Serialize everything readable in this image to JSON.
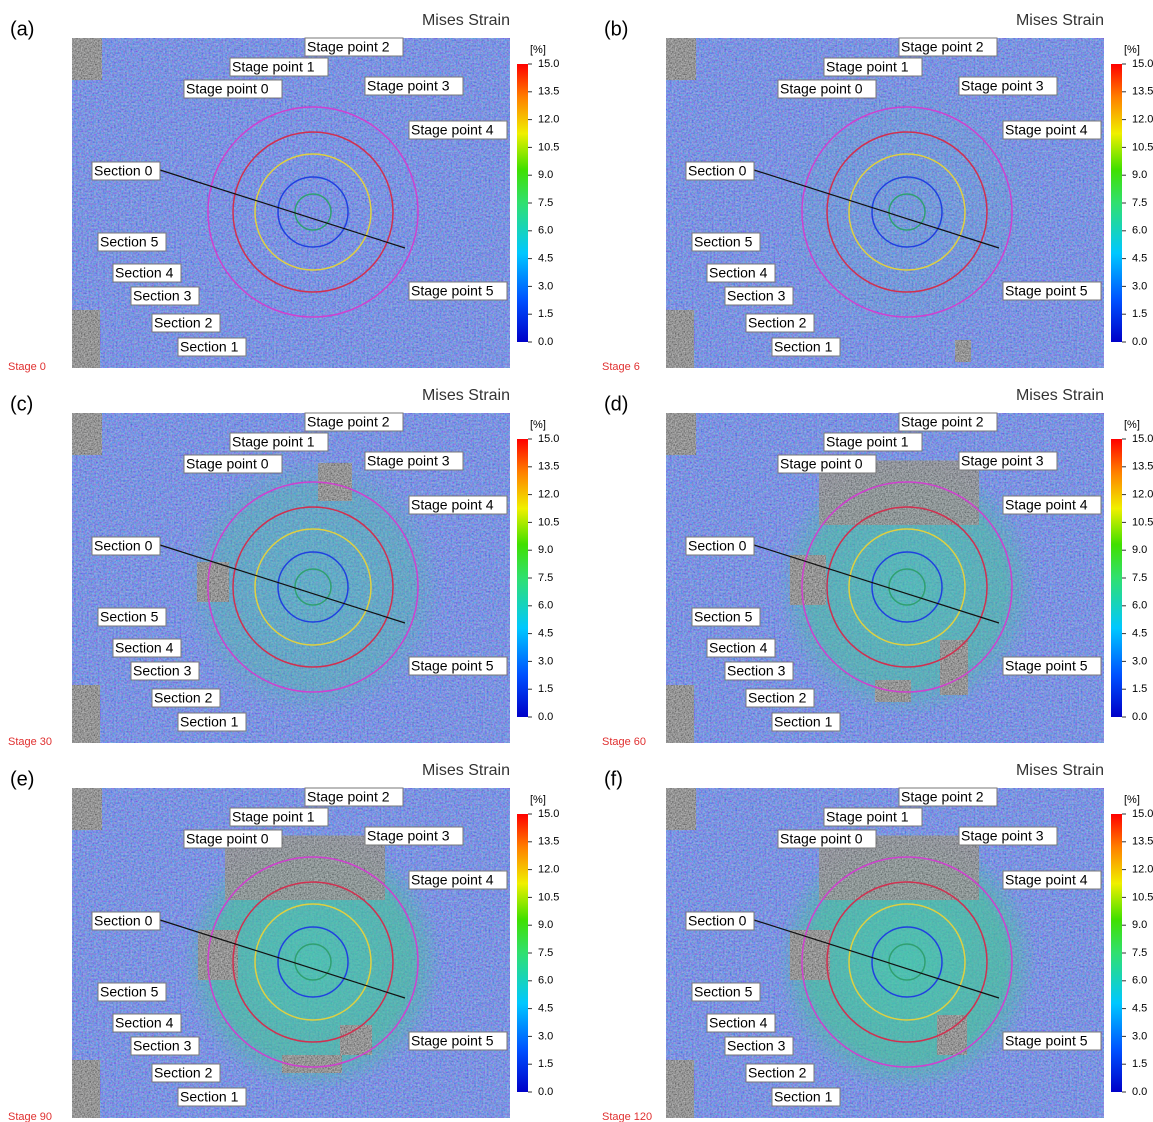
{
  "figure": {
    "title": "Mises Strain",
    "unit": "[%]",
    "colorbar_ticks": [
      {
        "value": 15,
        "label": "15.0"
      },
      {
        "value": 13.5,
        "label": "13.5"
      },
      {
        "value": 12,
        "label": "12.0"
      },
      {
        "value": 10.5,
        "label": "10.5"
      },
      {
        "value": 9,
        "label": "9.0"
      },
      {
        "value": 7.5,
        "label": "7.5"
      },
      {
        "value": 6,
        "label": "6.0"
      },
      {
        "value": 4.5,
        "label": "4.5"
      },
      {
        "value": 3,
        "label": "3.0"
      },
      {
        "value": 1.5,
        "label": "1.5"
      },
      {
        "value": 0,
        "label": "0.0"
      }
    ],
    "stage_points": [
      "Stage point 0",
      "Stage point 1",
      "Stage point 2",
      "Stage point 3",
      "Stage point 4",
      "Stage point 5"
    ],
    "sections": [
      "Section 0",
      "Section 1",
      "Section 2",
      "Section 3",
      "Section 4",
      "Section 5"
    ],
    "panels": [
      {
        "letter": "(a)",
        "stage": "Stage 0"
      },
      {
        "letter": "(b)",
        "stage": "Stage 6"
      },
      {
        "letter": "(c)",
        "stage": "Stage 30"
      },
      {
        "letter": "(d)",
        "stage": "Stage 60"
      },
      {
        "letter": "(e)",
        "stage": "Stage 90"
      },
      {
        "letter": "(f)",
        "stage": "Stage 120"
      }
    ]
  }
}
